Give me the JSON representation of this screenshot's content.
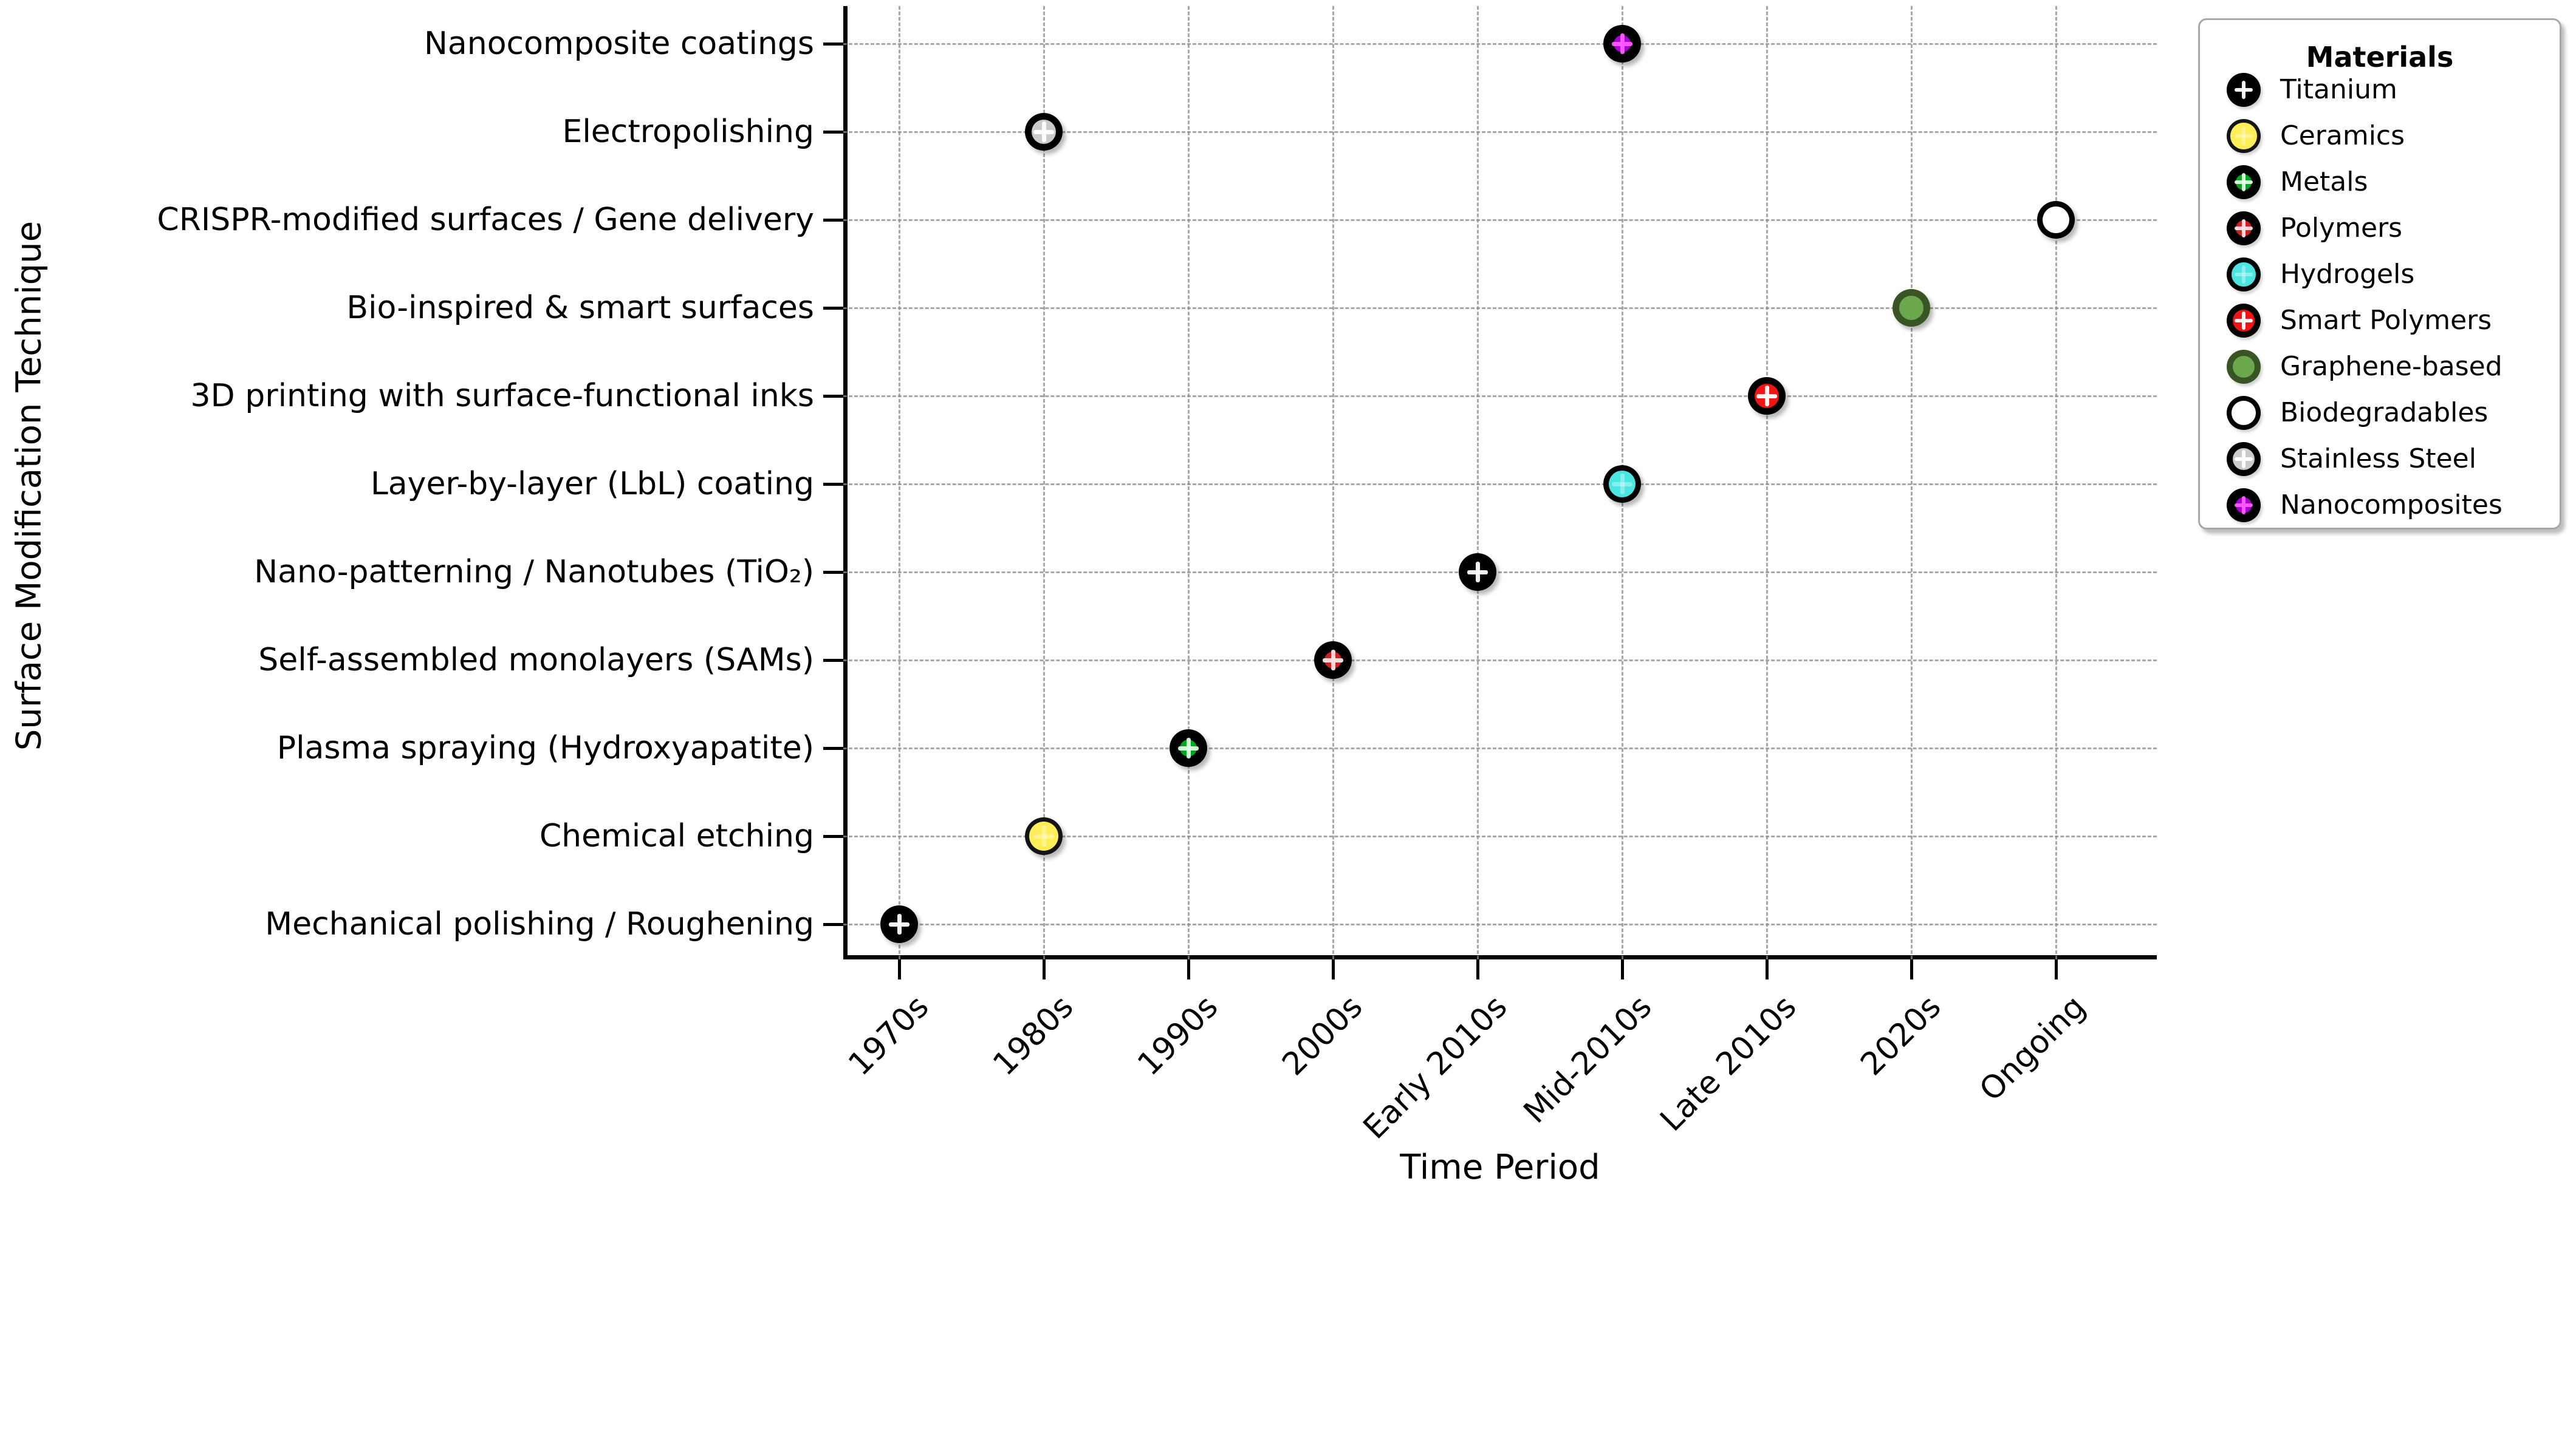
{
  "chart_data": {
    "type": "scatter",
    "title": "",
    "xlabel": "Time Period",
    "ylabel": "Surface Modification Technique",
    "x_categories": [
      "1970s",
      "1980s",
      "1990s",
      "2000s",
      "Early 2010s",
      "Mid-2010s",
      "Late 2010s",
      "2020s",
      "Ongoing"
    ],
    "y_categories": [
      "Nanocomposite coatings",
      "Electropolishing",
      "CRISPR-modified surfaces / Gene delivery",
      "Bio-inspired & smart surfaces",
      "3D printing with surface-functional inks",
      "Layer-by-layer (LbL) coating",
      "Nano-patterning / Nanotubes (TiO₂)",
      "Self-assembled monolayers (SAMs)",
      "Plasma spraying (Hydroxyapatite)",
      "Chemical etching",
      "Mechanical polishing / Roughening"
    ],
    "points": [
      {
        "technique": "Mechanical polishing / Roughening",
        "time": "1970s",
        "material": "Titanium"
      },
      {
        "technique": "Chemical etching",
        "time": "1980s",
        "material": "Ceramics"
      },
      {
        "technique": "Plasma spraying (Hydroxyapatite)",
        "time": "1990s",
        "material": "Metals"
      },
      {
        "technique": "Self-assembled monolayers (SAMs)",
        "time": "2000s",
        "material": "Polymers"
      },
      {
        "technique": "Nano-patterning / Nanotubes (TiO₂)",
        "time": "Early 2010s",
        "material": "Titanium"
      },
      {
        "technique": "Layer-by-layer (LbL) coating",
        "time": "Mid-2010s",
        "material": "Hydrogels"
      },
      {
        "technique": "3D printing with surface-functional inks",
        "time": "Late 2010s",
        "material": "Smart Polymers"
      },
      {
        "technique": "Bio-inspired & smart surfaces",
        "time": "2020s",
        "material": "Graphene-based"
      },
      {
        "technique": "CRISPR-modified surfaces / Gene delivery",
        "time": "Ongoing",
        "material": "Biodegradables"
      },
      {
        "technique": "Electropolishing",
        "time": "1980s",
        "material": "Stainless Steel"
      },
      {
        "technique": "Nanocomposite coatings",
        "time": "Mid-2010s",
        "material": "Nanocomposites"
      }
    ],
    "legend": {
      "title": "Materials",
      "position": "top-right outside plot",
      "entries": [
        {
          "label": "Titanium",
          "fill": "#0b0b0b",
          "edge": "#000000",
          "edge_width": 20,
          "plus_color": "#ffffff",
          "plus_opacity": 0.95
        },
        {
          "label": "Ceramics",
          "fill": "#ffee58",
          "edge": "#141414",
          "edge_width": 7,
          "plus_color": "#ffffff",
          "plus_opacity": 0.35
        },
        {
          "label": "Metals",
          "fill": "#00a41e",
          "edge": "#000000",
          "edge_width": 17,
          "plus_color": "#e9ffe9",
          "plus_opacity": 0.9
        },
        {
          "label": "Polymers",
          "fill": "#cf2020",
          "edge": "#000000",
          "edge_width": 17,
          "plus_color": "#ffe3e3",
          "plus_opacity": 0.95
        },
        {
          "label": "Hydrogels",
          "fill": "#4ce6e2",
          "edge": "#000000",
          "edge_width": 9,
          "plus_color": "#ffffff",
          "plus_opacity": 0.35
        },
        {
          "label": "Smart Polymers",
          "fill": "#f01414",
          "edge": "#000000",
          "edge_width": 11,
          "plus_color": "#ffffff",
          "plus_opacity": 0.95
        },
        {
          "label": "Graphene-based",
          "fill": "#6ba84d",
          "edge": "#3a5524",
          "edge_width": 11,
          "plus_color": "#ffffff",
          "plus_opacity": 0.0
        },
        {
          "label": "Biodegradables",
          "fill": "#ffffff",
          "edge": "#000000",
          "edge_width": 9,
          "plus_color": "#ffffff",
          "plus_opacity": 0.0
        },
        {
          "label": "Stainless Steel",
          "fill": "#cbcbcb",
          "edge": "#000000",
          "edge_width": 11,
          "plus_color": "#ffffff",
          "plus_opacity": 0.95
        },
        {
          "label": "Nanocomposites",
          "fill": "#a800cf",
          "edge": "#000000",
          "edge_width": 17,
          "plus_color": "#ff5aff",
          "plus_opacity": 0.95
        }
      ]
    },
    "grid": {
      "horizontal": true,
      "vertical": true,
      "style": "dashed",
      "color": "#8c8c8c"
    },
    "spines": {
      "left": true,
      "bottom": true,
      "top": false,
      "right": false
    },
    "x_tick_rotation_deg": 45
  }
}
